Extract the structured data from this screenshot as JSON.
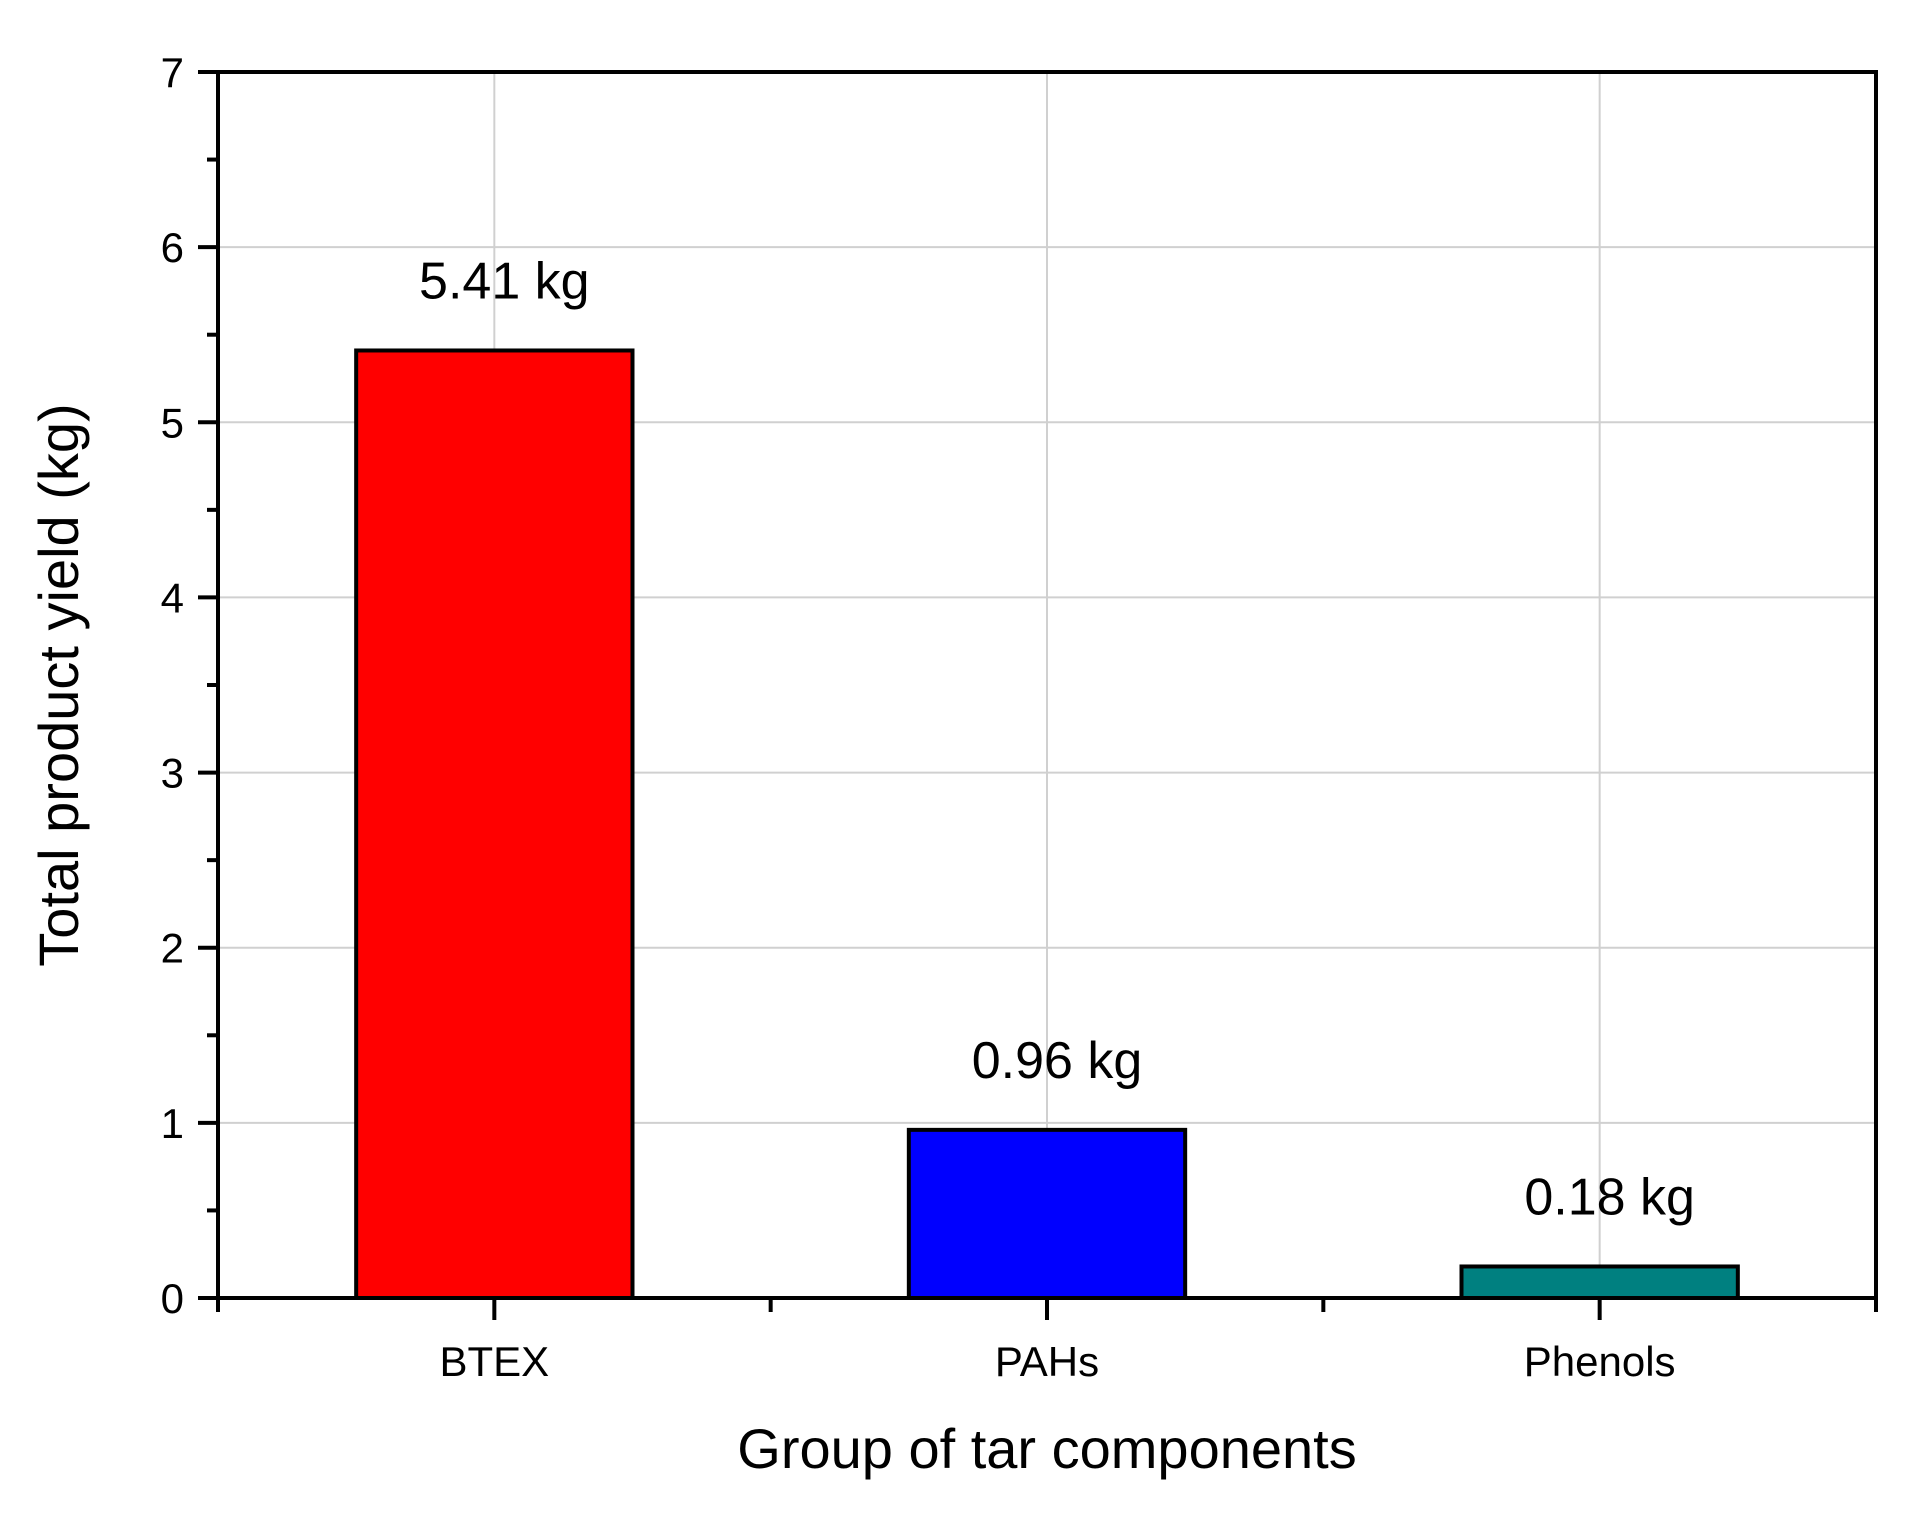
{
  "chart_data": {
    "type": "bar",
    "categories": [
      "BTEX",
      "PAHs",
      "Phenols"
    ],
    "values": [
      5.41,
      0.96,
      0.18
    ],
    "data_labels": [
      "5.41 kg",
      "0.96 kg",
      "0.18 kg"
    ],
    "bar_colors": [
      "#ff0000",
      "#0000ff",
      "#008080"
    ],
    "title": "",
    "xlabel": "Group of tar components",
    "ylabel": "Total product yield (kg)",
    "ylim": [
      0,
      7
    ],
    "yticks": [
      0,
      1,
      2,
      3,
      4,
      5,
      6,
      7
    ],
    "grid": true,
    "legend": "none"
  }
}
